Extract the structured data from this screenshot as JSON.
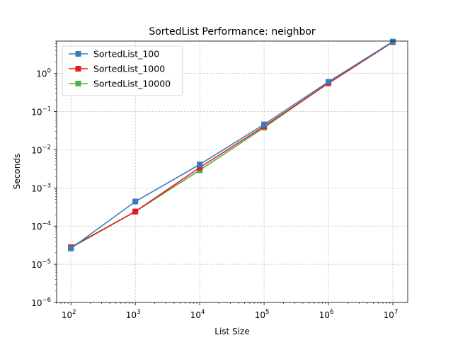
{
  "chart_data": {
    "type": "line",
    "title": "SortedList Performance: neighbor",
    "xlabel": "List Size",
    "ylabel": "Seconds",
    "x_scale": "log",
    "y_scale": "log",
    "x": [
      100,
      1000,
      10000,
      100000,
      1000000,
      10000000
    ],
    "xlim": [
      60,
      17000000
    ],
    "ylim": [
      1e-06,
      7
    ],
    "x_ticks": [
      {
        "base": "10",
        "exp": "2"
      },
      {
        "base": "10",
        "exp": "3"
      },
      {
        "base": "10",
        "exp": "4"
      },
      {
        "base": "10",
        "exp": "5"
      },
      {
        "base": "10",
        "exp": "6"
      },
      {
        "base": "10",
        "exp": "7"
      }
    ],
    "y_ticks": [
      {
        "base": "10",
        "exp": "−6"
      },
      {
        "base": "10",
        "exp": "−5"
      },
      {
        "base": "10",
        "exp": "−4"
      },
      {
        "base": "10",
        "exp": "−3"
      },
      {
        "base": "10",
        "exp": "−2"
      },
      {
        "base": "10",
        "exp": "−1"
      },
      {
        "base": "10",
        "exp": "0"
      }
    ],
    "grid": true,
    "legend_position": "upper-left",
    "marker": "square",
    "series": [
      {
        "name": "SortedList_100",
        "color": "#377eb8",
        "values": [
          2.6e-05,
          0.00044,
          0.0041,
          0.046,
          0.6,
          6.8
        ]
      },
      {
        "name": "SortedList_1000",
        "color": "#e41a1c",
        "values": [
          2.8e-05,
          0.00024,
          0.0034,
          0.041,
          0.55,
          6.6
        ]
      },
      {
        "name": "SortedList_10000",
        "color": "#4daf4a",
        "values": [
          2.7e-05,
          0.00024,
          0.0029,
          0.038,
          0.56,
          6.7
        ]
      }
    ]
  }
}
